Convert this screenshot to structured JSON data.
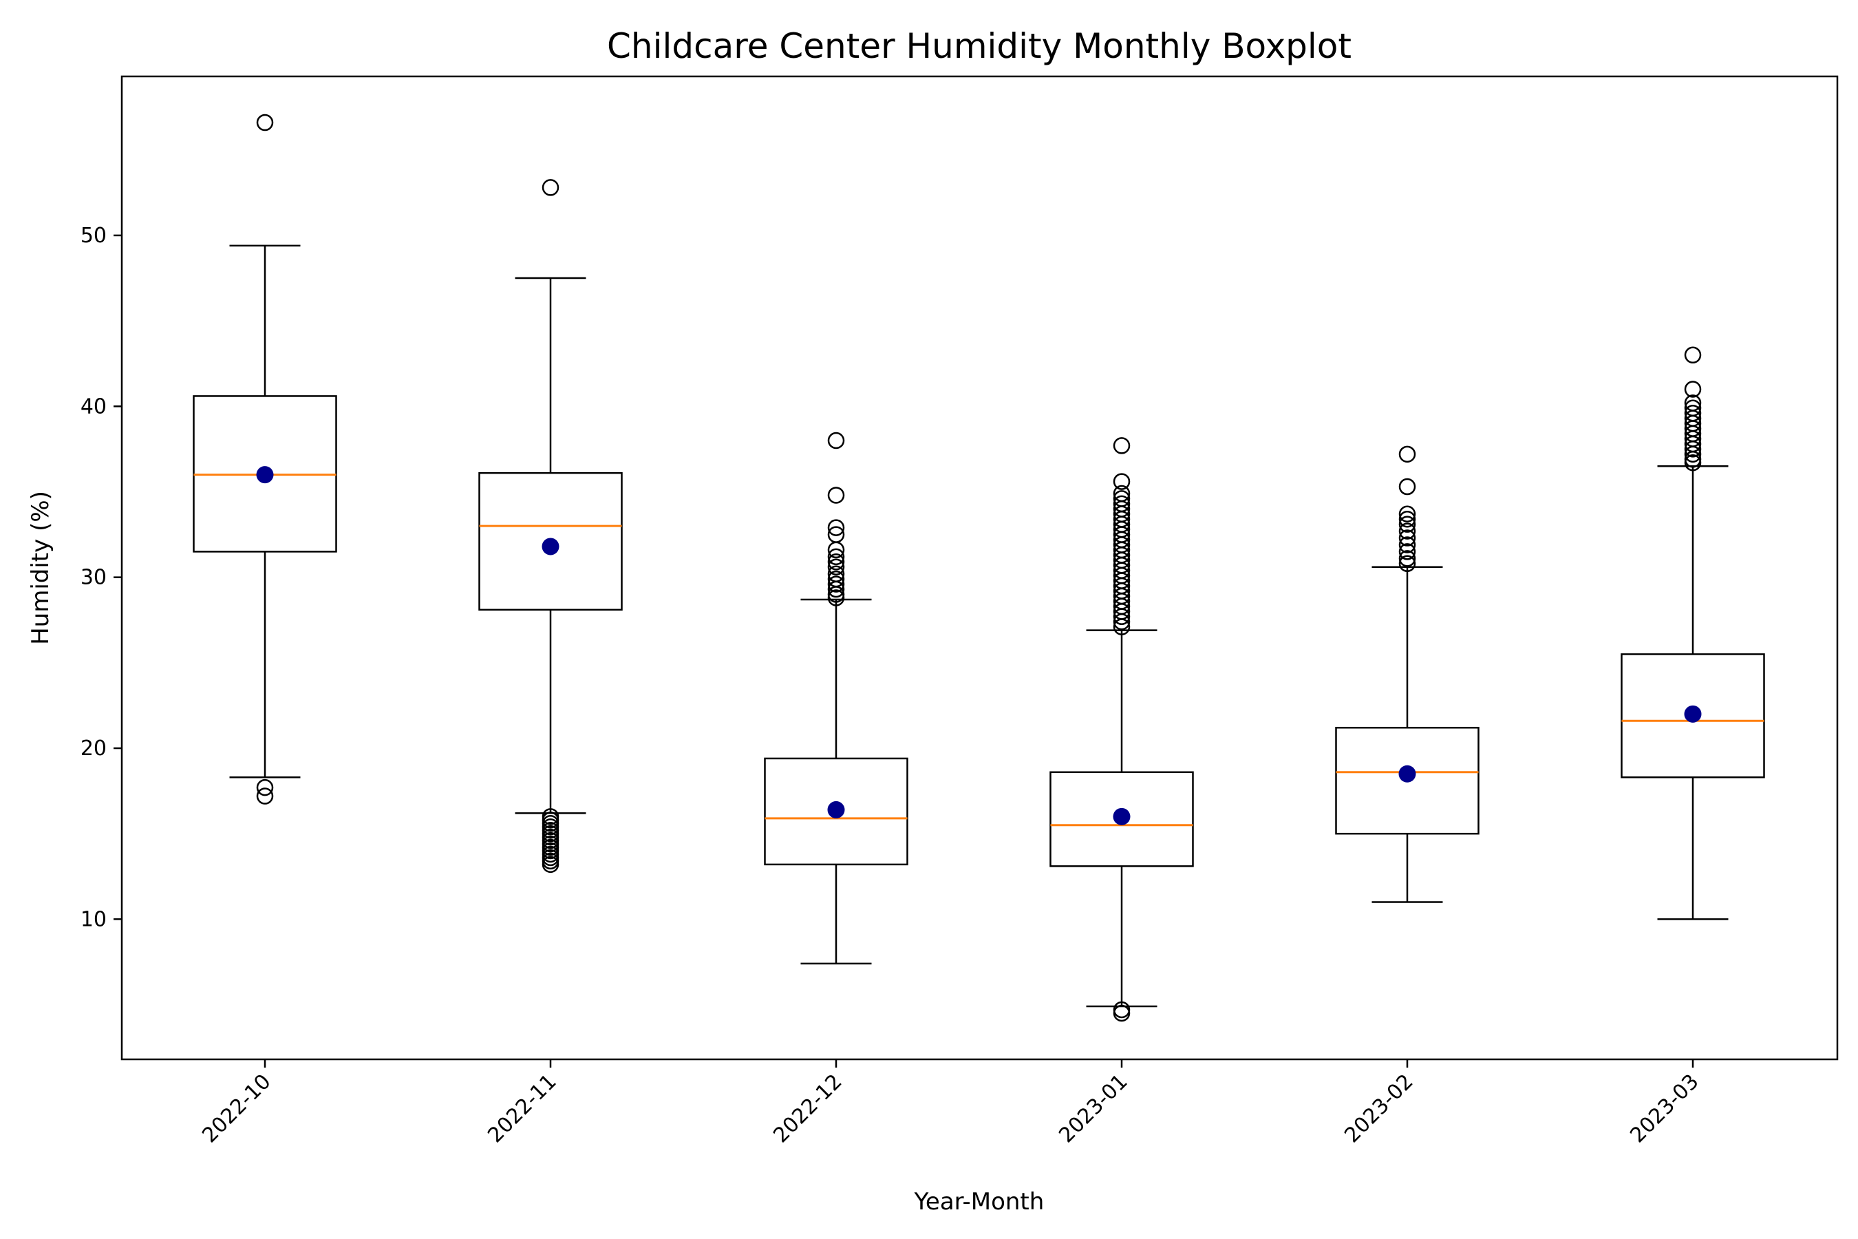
{
  "chart_data": {
    "type": "boxplot",
    "title": "Childcare Center Humidity Monthly Boxplot",
    "xlabel": "Year-Month",
    "ylabel": "Humidity (%)",
    "ylim": [
      1.8,
      59.3
    ],
    "yticks": [
      10,
      20,
      30,
      40,
      50
    ],
    "grid": false,
    "categories": [
      "2022-10",
      "2022-11",
      "2022-12",
      "2023-01",
      "2023-02",
      "2023-03"
    ],
    "boxes": [
      {
        "whisker_low": 18.3,
        "q1": 31.5,
        "median": 36.0,
        "q3": 40.6,
        "whisker_high": 49.4,
        "mean": 36.0,
        "outliers": [
          56.6,
          17.7,
          17.2
        ]
      },
      {
        "whisker_low": 16.2,
        "q1": 28.1,
        "median": 33.0,
        "q3": 36.1,
        "whisker_high": 47.5,
        "mean": 31.8,
        "outliers": [
          52.8,
          16.0,
          15.8,
          15.6,
          15.4,
          15.2,
          15.0,
          14.8,
          14.6,
          14.4,
          14.2,
          14.0,
          13.8,
          13.6,
          13.4,
          13.2
        ]
      },
      {
        "whisker_low": 7.4,
        "q1": 13.2,
        "median": 15.9,
        "q3": 19.4,
        "whisker_high": 28.7,
        "mean": 16.4,
        "outliers": [
          38.0,
          34.8,
          32.9,
          32.5,
          31.6,
          31.2,
          30.9,
          30.6,
          30.2,
          29.9,
          29.6,
          29.3,
          29.0,
          28.8
        ]
      },
      {
        "whisker_low": 4.9,
        "q1": 13.1,
        "median": 15.5,
        "q3": 18.6,
        "whisker_high": 26.9,
        "mean": 16.0,
        "outliers": [
          37.7,
          35.6,
          34.9,
          34.6,
          34.3,
          34.0,
          33.7,
          33.4,
          33.1,
          32.8,
          32.5,
          32.2,
          31.9,
          31.6,
          31.3,
          31.0,
          30.7,
          30.4,
          30.1,
          29.8,
          29.5,
          29.2,
          28.9,
          28.6,
          28.3,
          28.0,
          27.7,
          27.4,
          27.1,
          4.7,
          4.5
        ]
      },
      {
        "whisker_low": 11.0,
        "q1": 15.0,
        "median": 18.6,
        "q3": 21.2,
        "whisker_high": 30.6,
        "mean": 18.5,
        "outliers": [
          37.2,
          35.3,
          33.7,
          33.4,
          33.1,
          32.7,
          32.3,
          31.9,
          31.5,
          31.1,
          30.8
        ]
      },
      {
        "whisker_low": 10.0,
        "q1": 18.3,
        "median": 21.6,
        "q3": 25.5,
        "whisker_high": 36.5,
        "mean": 22.0,
        "outliers": [
          43.0,
          41.0,
          40.2,
          39.9,
          39.6,
          39.3,
          39.0,
          38.7,
          38.4,
          38.1,
          37.8,
          37.5,
          37.2,
          36.9,
          36.7
        ]
      }
    ],
    "colors": {
      "box": "#000000",
      "median": "#ff7f0e",
      "mean": "#00008b",
      "outlier": "#000000"
    }
  }
}
